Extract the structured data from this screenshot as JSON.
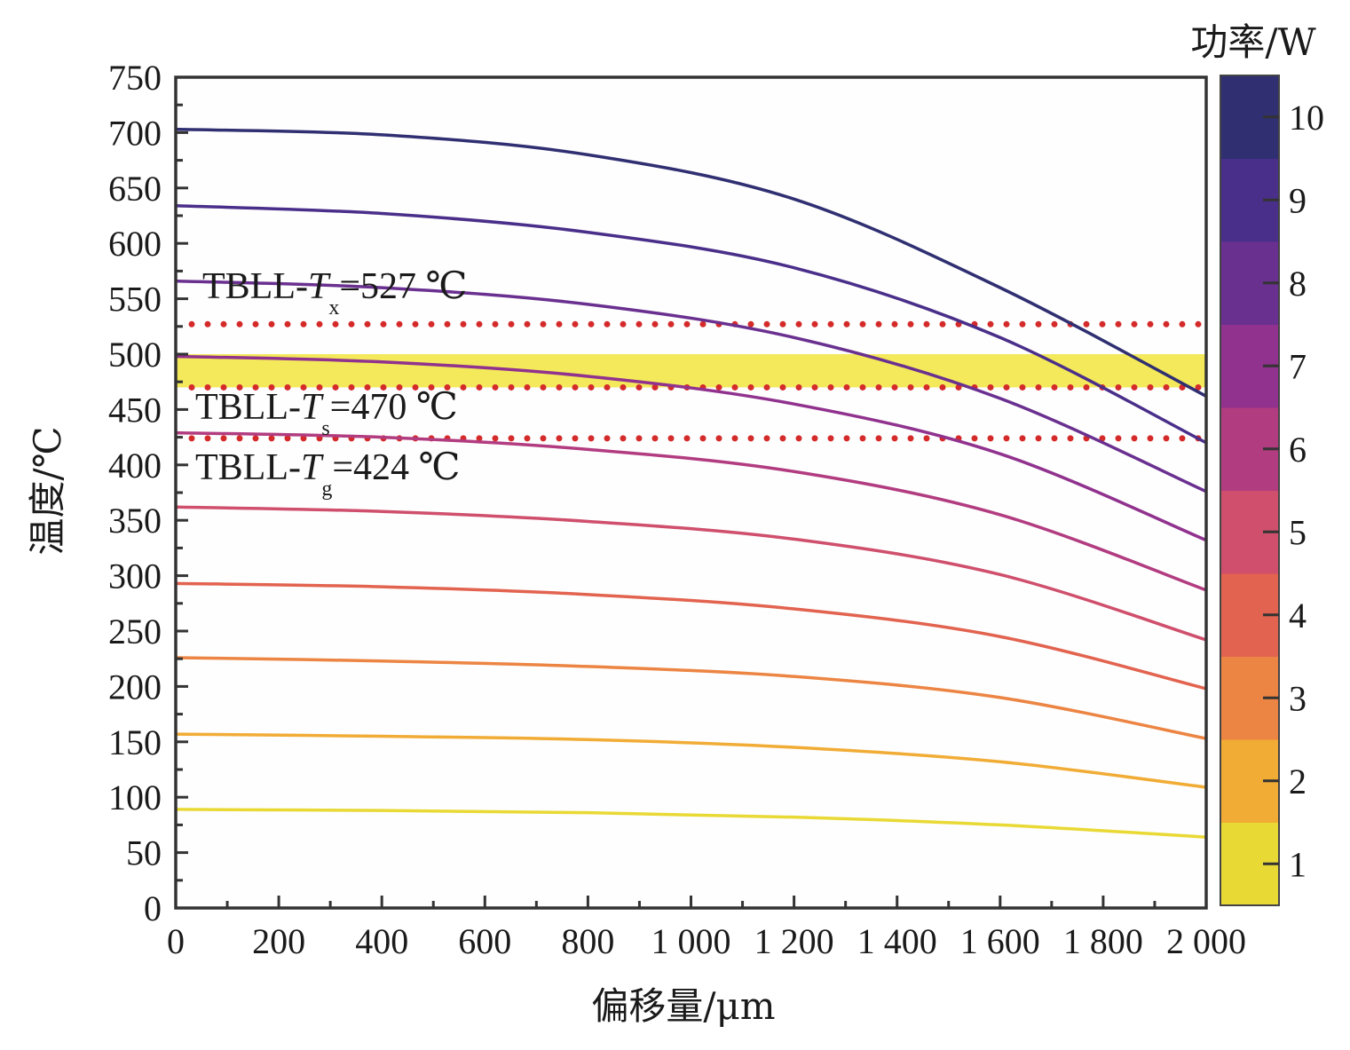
{
  "chart_data": {
    "type": "line",
    "title": "",
    "xlabel": "偏移量/μm",
    "ylabel": "温度/℃",
    "xlim": [
      0,
      2000
    ],
    "ylim": [
      0,
      750
    ],
    "x_ticks": [
      0,
      200,
      400,
      600,
      800,
      1000,
      1200,
      1400,
      1600,
      1800,
      2000
    ],
    "x_tick_labels": [
      "0",
      "200",
      "400",
      "600",
      "800",
      "1 000",
      "1 200",
      "1 400",
      "1 600",
      "1 800",
      "2 000"
    ],
    "y_ticks": [
      0,
      50,
      100,
      150,
      200,
      250,
      300,
      350,
      400,
      450,
      500,
      550,
      600,
      650,
      700,
      750
    ],
    "y_tick_labels": [
      "0",
      "50",
      "100",
      "150",
      "200",
      "250",
      "300",
      "350",
      "400",
      "450",
      "500",
      "550",
      "600",
      "650",
      "700",
      "750"
    ],
    "grid": false,
    "x": [
      0,
      400,
      800,
      1200,
      1600,
      2000
    ],
    "series": [
      {
        "name": "10 W",
        "power": 10,
        "color": "#2f2f72",
        "values": [
          703,
          698,
          680,
          640,
          560,
          462
        ]
      },
      {
        "name": "9 W",
        "power": 9,
        "color": "#4a2f8a",
        "values": [
          634,
          627,
          610,
          578,
          515,
          420
        ]
      },
      {
        "name": "8 W",
        "power": 8,
        "color": "#6a3090",
        "values": [
          566,
          560,
          545,
          515,
          460,
          376
        ]
      },
      {
        "name": "7 W",
        "power": 7,
        "color": "#90328e",
        "values": [
          498,
          493,
          480,
          455,
          410,
          332
        ]
      },
      {
        "name": "6 W",
        "power": 6,
        "color": "#b23c80",
        "values": [
          429,
          425,
          414,
          394,
          355,
          287
        ]
      },
      {
        "name": "5 W",
        "power": 5,
        "color": "#cf4f6c",
        "values": [
          362,
          358,
          349,
          333,
          301,
          242
        ]
      },
      {
        "name": "4 W",
        "power": 4,
        "color": "#e2634f",
        "values": [
          293,
          290,
          283,
          270,
          245,
          198
        ]
      },
      {
        "name": "3 W",
        "power": 3,
        "color": "#ec8543",
        "values": [
          226,
          223,
          218,
          209,
          190,
          153
        ]
      },
      {
        "name": "2 W",
        "power": 2,
        "color": "#f1ac36",
        "values": [
          157,
          155,
          152,
          145,
          132,
          109
        ]
      },
      {
        "name": "1 W",
        "power": 1,
        "color": "#e9d935",
        "values": [
          89,
          88,
          86,
          82,
          75,
          64
        ]
      }
    ],
    "reference_lines": [
      {
        "name": "Tx",
        "value": 527,
        "label_main": "TBLL-",
        "label_var": "T",
        "label_sub": "x",
        "label_value": "=527 ℃",
        "color": "#d42a2a",
        "style": "dotted"
      },
      {
        "name": "Ts",
        "value": 470,
        "label_main": "TBLL-",
        "label_var": "T",
        "label_sub": "s",
        "label_value": "=470 ℃",
        "color": "#d42a2a",
        "style": "dotted"
      },
      {
        "name": "Tg",
        "value": 424,
        "label_main": "TBLL-",
        "label_var": "T",
        "label_sub": "g",
        "label_value": "=424 ℃",
        "color": "#d42a2a",
        "style": "dotted"
      }
    ],
    "highlight_band": {
      "from": 470,
      "to": 500,
      "color": "#f3e95a"
    },
    "colorbar": {
      "title": "功率/W",
      "ticks": [
        1,
        2,
        3,
        4,
        5,
        6,
        7,
        8,
        9,
        10
      ],
      "tick_labels": [
        "1",
        "2",
        "3",
        "4",
        "5",
        "6",
        "7",
        "8",
        "9",
        "10"
      ],
      "colors": [
        "#e9d935",
        "#f1ac36",
        "#ec8543",
        "#e2634f",
        "#cf4f6c",
        "#b23c80",
        "#90328e",
        "#6a3090",
        "#4a2f8a",
        "#2f2f72"
      ],
      "placement": "right"
    }
  }
}
